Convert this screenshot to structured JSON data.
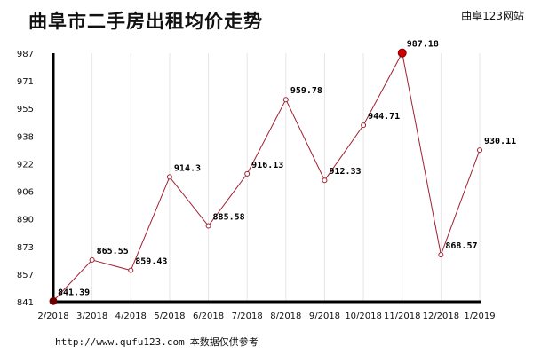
{
  "header": {
    "title": "曲阜市二手房出租均价走势",
    "brand": "曲阜123网站"
  },
  "footer": {
    "url": "http://www.qufu123.com",
    "note": "本数据仅供参考"
  },
  "colors": {
    "line": "#a02030",
    "point_fill": "#ffffff",
    "max_point": "#d40000",
    "min_point": "#6b0000",
    "axis": "#000000",
    "grid": "#e6e6e6"
  },
  "chart_data": {
    "type": "line",
    "title": "曲阜市二手房出租均价走势",
    "xlabel": "",
    "ylabel": "",
    "categories": [
      "2/2018",
      "3/2018",
      "4/2018",
      "5/2018",
      "6/2018",
      "7/2018",
      "8/2018",
      "9/2018",
      "10/2018",
      "11/2018",
      "12/2018",
      "1/2019"
    ],
    "values": [
      841.39,
      865.55,
      859.43,
      914.3,
      885.58,
      916.13,
      959.78,
      912.33,
      944.71,
      987.18,
      868.57,
      930.11
    ],
    "value_labels": [
      "841.39",
      "865.55",
      "859.43",
      "914.3",
      "885.58",
      "916.13",
      "959.78",
      "912.33",
      "944.71",
      "987.18",
      "868.57",
      "930.11"
    ],
    "y_ticks": [
      "987",
      "971",
      "955",
      "938",
      "922",
      "906",
      "890",
      "873",
      "857",
      "841"
    ],
    "ylim": [
      841,
      987
    ],
    "grid": "vertical",
    "legend": "none"
  }
}
